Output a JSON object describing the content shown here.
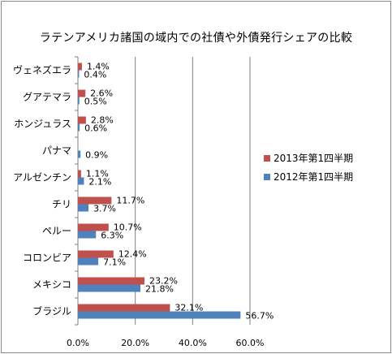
{
  "chart_data": {
    "type": "bar",
    "orientation": "horizontal",
    "title": "ラテンアメリカ諸国の域内での社債や外債発行シェアの比較",
    "categories": [
      "ヴェネズエラ",
      "グアテマラ",
      "ホンジュラス",
      "パナマ",
      "アルゼンチン",
      "チリ",
      "ペルー",
      "コロンビア",
      "メキシコ",
      "ブラジル"
    ],
    "series": [
      {
        "name": "2013年第1四半期",
        "color": "#c0504d",
        "values": [
          1.4,
          2.6,
          2.8,
          null,
          1.1,
          11.7,
          10.7,
          12.4,
          23.2,
          32.1
        ],
        "labels": [
          "1.4%",
          "2.6%",
          "2.8%",
          "",
          "1.1%",
          "11.7%",
          "10.7%",
          "12.4%",
          "23.2%",
          "32.1%"
        ]
      },
      {
        "name": "2012年第1四半期",
        "color": "#4f81bd",
        "values": [
          0.4,
          0.5,
          0.6,
          0.9,
          2.1,
          3.7,
          6.3,
          7.1,
          21.8,
          56.7
        ],
        "labels": [
          "0.4%",
          "0.5%",
          "0.6%",
          "0.9%",
          "2.1%",
          "3.7%",
          "6.3%",
          "7.1%",
          "21.8%",
          "56.7%"
        ]
      }
    ],
    "xlim": [
      0,
      60
    ],
    "xticks": [
      0,
      20,
      40,
      60
    ],
    "xtick_labels": [
      "0.0%",
      "20.0%",
      "40.0%",
      "60.0%"
    ],
    "grid": true,
    "legend_position": "right"
  }
}
